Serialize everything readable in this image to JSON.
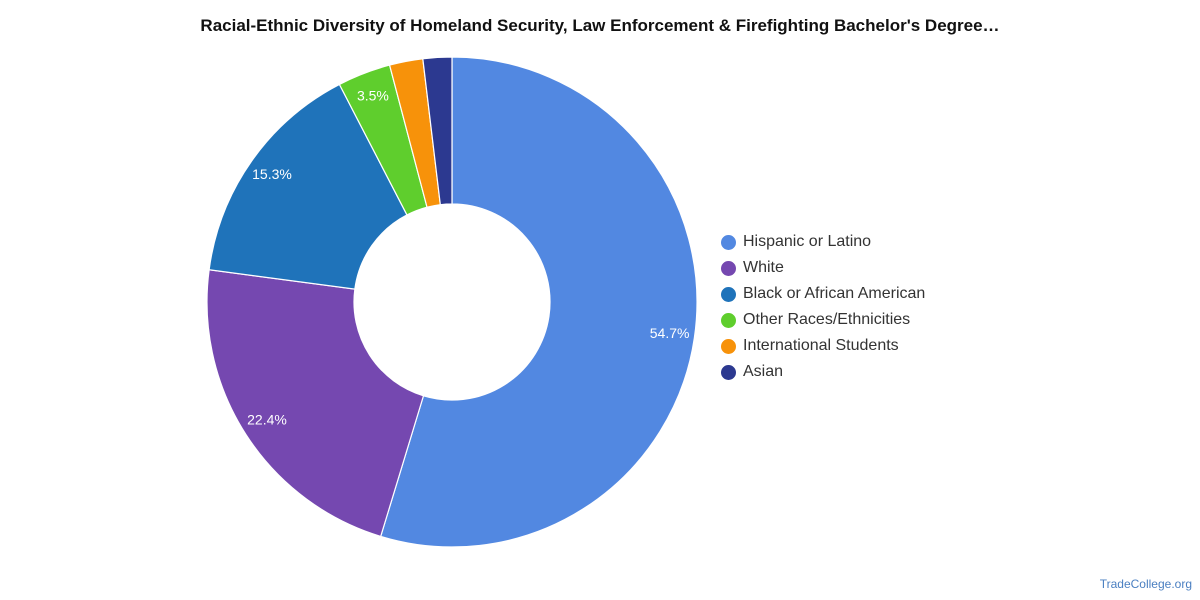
{
  "chart_data": {
    "type": "pie",
    "title": "Racial-Ethnic Diversity of Homeland Security, Law Enforcement & Firefighting Bachelor's Degree…",
    "legend_position": "right",
    "hole": "donut",
    "slices": [
      {
        "label": "Hispanic or Latino",
        "value": 54.7,
        "color": "#5288e1",
        "data_label": "54.7%"
      },
      {
        "label": "White",
        "value": 22.4,
        "color": "#7548b0",
        "data_label": "22.4%"
      },
      {
        "label": "Black or African American",
        "value": 15.3,
        "color": "#1f73ba",
        "data_label": "15.3%"
      },
      {
        "label": "Other Races/Ethnicities",
        "value": 3.5,
        "color": "#5fce2d",
        "data_label": "3.5%"
      },
      {
        "label": "International Students",
        "value": 2.2,
        "color": "#f7920a",
        "data_label": ""
      },
      {
        "label": "Asian",
        "value": 1.9,
        "color": "#2c3990",
        "data_label": ""
      }
    ]
  },
  "source": "TradeCollege.org"
}
